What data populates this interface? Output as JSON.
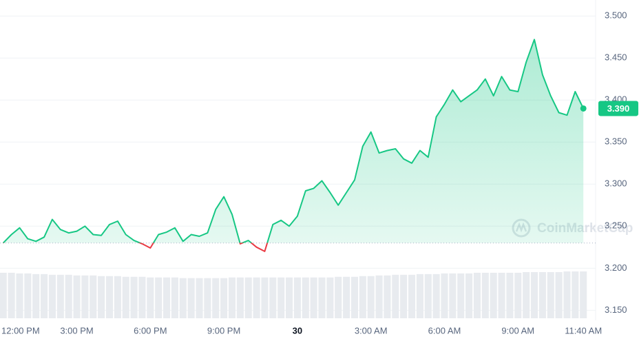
{
  "chart_data": {
    "type": "line",
    "x": [
      0,
      20,
      40,
      60,
      80,
      100,
      120,
      140,
      160,
      180,
      200,
      220,
      240,
      260,
      280,
      300,
      320,
      340,
      360,
      380,
      400,
      420,
      440,
      460,
      480,
      500,
      520,
      540,
      560,
      580,
      600,
      620,
      640,
      660,
      680,
      700,
      720,
      740,
      760,
      780,
      800,
      820,
      840,
      860,
      880,
      900,
      920,
      940,
      960,
      980,
      1000,
      1020,
      1040,
      1060,
      1080,
      1100,
      1120,
      1140,
      1160,
      1180,
      1200,
      1220,
      1240,
      1260,
      1280,
      1300,
      1320,
      1340,
      1360,
      1380,
      1400,
      1420
    ],
    "series": [
      {
        "color": "#16c784",
        "values": [
          3.23,
          3.24,
          3.248,
          3.235,
          3.232,
          3.237,
          3.258,
          3.246,
          3.242,
          3.244,
          3.25,
          3.24,
          3.239,
          3.252,
          3.256,
          3.24,
          3.233,
          3.229,
          3.224,
          3.24,
          3.243,
          3.248,
          3.232,
          3.24,
          3.238,
          3.242,
          3.27,
          3.285,
          3.264,
          3.229,
          3.233,
          3.225,
          3.22,
          3.252,
          3.257,
          3.25,
          3.262,
          3.292,
          3.295,
          3.304,
          3.29,
          3.275,
          3.29,
          3.305,
          3.345,
          3.362,
          3.337,
          3.34,
          3.342,
          3.33,
          3.325,
          3.34,
          3.332,
          3.38,
          3.395,
          3.412,
          3.398,
          3.405,
          3.412,
          3.425,
          3.405,
          3.428,
          3.412,
          3.41,
          3.445,
          3.472,
          3.43,
          3.405,
          3.385,
          3.382,
          3.41,
          3.39
        ]
      }
    ],
    "down_color": "#ea3943",
    "baseline": 3.23,
    "volume": [
      68,
      68,
      67,
      67,
      66,
      66,
      65,
      65,
      65,
      64,
      64,
      64,
      63,
      63,
      63,
      62,
      62,
      62,
      61,
      61,
      61,
      61,
      60,
      60,
      60,
      60,
      60,
      60,
      61,
      61,
      61,
      61,
      61,
      61,
      61,
      61,
      61,
      61,
      61,
      61,
      61,
      62,
      62,
      62,
      63,
      63,
      64,
      64,
      65,
      65,
      65,
      66,
      66,
      66,
      67,
      67,
      67,
      67,
      68,
      68,
      68,
      68,
      68,
      68,
      69,
      69,
      69,
      69,
      69,
      70,
      70,
      70
    ],
    "price_label": "3.390",
    "watermark": "CoinMarketCap",
    "xlim": [
      -8,
      1450
    ],
    "ylim": [
      3.138,
      3.519
    ],
    "yticks": [
      {
        "value": 3.15,
        "label": "3.150"
      },
      {
        "value": 3.2,
        "label": "3.200"
      },
      {
        "value": 3.25,
        "label": "3.250"
      },
      {
        "value": 3.3,
        "label": "3.300"
      },
      {
        "value": 3.35,
        "label": "3.350"
      },
      {
        "value": 3.4,
        "label": "3.400"
      },
      {
        "value": 3.45,
        "label": "3.450"
      },
      {
        "value": 3.5,
        "label": "3.500"
      }
    ],
    "xticks": [
      {
        "value": 0,
        "label": "12:00 PM"
      },
      {
        "value": 180,
        "label": "3:00 PM"
      },
      {
        "value": 360,
        "label": "6:00 PM"
      },
      {
        "value": 540,
        "label": "9:00 PM"
      },
      {
        "value": 720,
        "label": "30"
      },
      {
        "value": 900,
        "label": "3:00 AM"
      },
      {
        "value": 1080,
        "label": "6:00 AM"
      },
      {
        "value": 1260,
        "label": "9:00 AM"
      },
      {
        "value": 1420,
        "label": "11:40 AM"
      }
    ],
    "grid": true
  }
}
